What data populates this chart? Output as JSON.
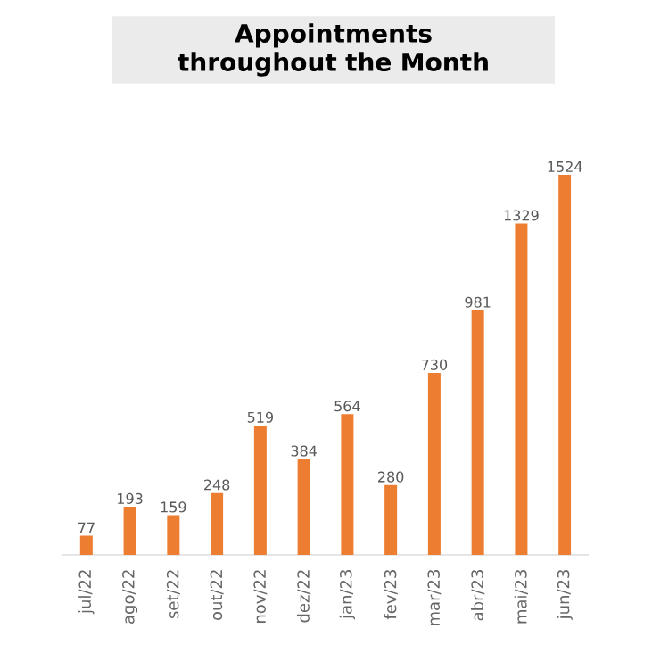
{
  "chart_data": {
    "type": "bar",
    "title": "Appointments throughout the Month",
    "categories": [
      "jul/22",
      "ago/22",
      "set/22",
      "out/22",
      "nov/22",
      "dez/22",
      "jan/23",
      "fev/23",
      "mar/23",
      "abr/23",
      "mai/23",
      "jun/23"
    ],
    "values": [
      77,
      193,
      159,
      248,
      519,
      384,
      564,
      280,
      730,
      981,
      1329,
      1524
    ],
    "color": "#ed7d31",
    "data_labels": true
  }
}
